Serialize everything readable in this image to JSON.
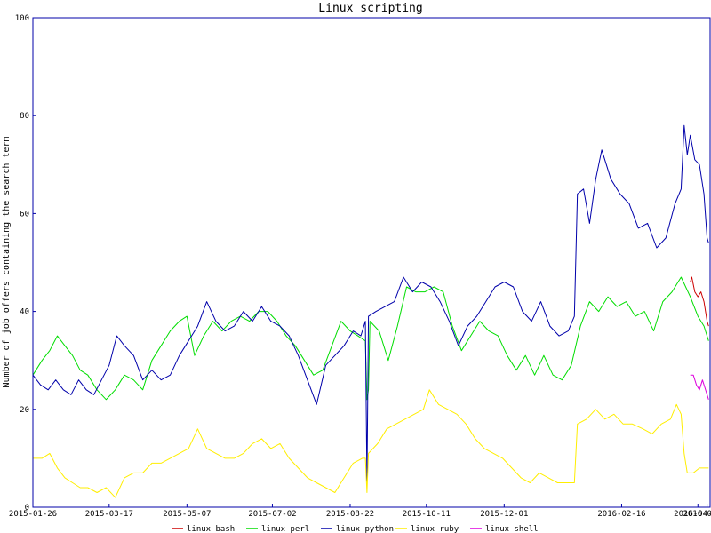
{
  "chart_data": {
    "type": "line",
    "title": "Linux scripting",
    "ylabel": "Number of job offers containing the search term",
    "xlabel": "",
    "ylim": [
      0,
      100
    ],
    "yticks": [
      0,
      20,
      40,
      60,
      80,
      100
    ],
    "xlim": [
      "2015-01-26",
      "2016-04-14"
    ],
    "xticks": [
      "2015-01-26",
      "2015-03-17",
      "2015-05-07",
      "2015-07-02",
      "2015-08-22",
      "2015-10-11",
      "2015-12-01",
      "2016-02-16",
      "2016-04-06",
      "2016-04-12"
    ],
    "grid": false,
    "legend_position": "bottom",
    "series": [
      {
        "name": "linux bash",
        "color": "#cc0000",
        "points": [
          [
            "2016-04-01",
            46
          ],
          [
            "2016-04-02",
            47
          ],
          [
            "2016-04-04",
            44
          ],
          [
            "2016-04-06",
            43
          ],
          [
            "2016-04-08",
            44
          ],
          [
            "2016-04-10",
            42
          ],
          [
            "2016-04-12",
            38
          ],
          [
            "2016-04-13",
            37
          ]
        ]
      },
      {
        "name": "linux perl",
        "color": "#00dd00",
        "points": [
          [
            "2015-01-26",
            27
          ],
          [
            "2015-02-01",
            30
          ],
          [
            "2015-02-06",
            32
          ],
          [
            "2015-02-11",
            35
          ],
          [
            "2015-02-16",
            33
          ],
          [
            "2015-02-21",
            31
          ],
          [
            "2015-02-26",
            28
          ],
          [
            "2015-03-03",
            27
          ],
          [
            "2015-03-09",
            24
          ],
          [
            "2015-03-15",
            22
          ],
          [
            "2015-03-21",
            24
          ],
          [
            "2015-03-27",
            27
          ],
          [
            "2015-04-02",
            26
          ],
          [
            "2015-04-08",
            24
          ],
          [
            "2015-04-14",
            30
          ],
          [
            "2015-04-20",
            33
          ],
          [
            "2015-04-26",
            36
          ],
          [
            "2015-05-02",
            38
          ],
          [
            "2015-05-07",
            39
          ],
          [
            "2015-05-12",
            31
          ],
          [
            "2015-05-18",
            35
          ],
          [
            "2015-05-24",
            38
          ],
          [
            "2015-05-30",
            36
          ],
          [
            "2015-06-05",
            38
          ],
          [
            "2015-06-11",
            39
          ],
          [
            "2015-06-17",
            38
          ],
          [
            "2015-06-23",
            40
          ],
          [
            "2015-06-29",
            40
          ],
          [
            "2015-07-05",
            38
          ],
          [
            "2015-07-11",
            35
          ],
          [
            "2015-07-17",
            33
          ],
          [
            "2015-07-23",
            30
          ],
          [
            "2015-07-29",
            27
          ],
          [
            "2015-08-04",
            28
          ],
          [
            "2015-08-10",
            33
          ],
          [
            "2015-08-16",
            38
          ],
          [
            "2015-08-22",
            36
          ],
          [
            "2015-08-27",
            35
          ],
          [
            "2015-09-01",
            34
          ],
          [
            "2015-09-02",
            22
          ],
          [
            "2015-09-03",
            24
          ],
          [
            "2015-09-04",
            38
          ],
          [
            "2015-09-10",
            36
          ],
          [
            "2015-09-16",
            30
          ],
          [
            "2015-09-22",
            37
          ],
          [
            "2015-09-28",
            45
          ],
          [
            "2015-10-04",
            44
          ],
          [
            "2015-10-10",
            44
          ],
          [
            "2015-10-16",
            45
          ],
          [
            "2015-10-22",
            44
          ],
          [
            "2015-10-28",
            37
          ],
          [
            "2015-11-03",
            32
          ],
          [
            "2015-11-09",
            35
          ],
          [
            "2015-11-15",
            38
          ],
          [
            "2015-11-21",
            36
          ],
          [
            "2015-11-27",
            35
          ],
          [
            "2015-12-03",
            31
          ],
          [
            "2015-12-09",
            28
          ],
          [
            "2015-12-15",
            31
          ],
          [
            "2015-12-21",
            27
          ],
          [
            "2015-12-27",
            31
          ],
          [
            "2016-01-02",
            27
          ],
          [
            "2016-01-08",
            26
          ],
          [
            "2016-01-14",
            29
          ],
          [
            "2016-01-20",
            37
          ],
          [
            "2016-01-26",
            42
          ],
          [
            "2016-02-01",
            40
          ],
          [
            "2016-02-07",
            43
          ],
          [
            "2016-02-13",
            41
          ],
          [
            "2016-02-19",
            42
          ],
          [
            "2016-02-25",
            39
          ],
          [
            "2016-03-02",
            40
          ],
          [
            "2016-03-08",
            36
          ],
          [
            "2016-03-14",
            42
          ],
          [
            "2016-03-20",
            44
          ],
          [
            "2016-03-26",
            47
          ],
          [
            "2016-04-01",
            43
          ],
          [
            "2016-04-06",
            39
          ],
          [
            "2016-04-10",
            37
          ],
          [
            "2016-04-13",
            34
          ]
        ]
      },
      {
        "name": "linux python",
        "color": "#0000aa",
        "points": [
          [
            "2015-01-26",
            27
          ],
          [
            "2015-01-31",
            25
          ],
          [
            "2015-02-05",
            24
          ],
          [
            "2015-02-10",
            26
          ],
          [
            "2015-02-15",
            24
          ],
          [
            "2015-02-20",
            23
          ],
          [
            "2015-02-25",
            26
          ],
          [
            "2015-03-02",
            24
          ],
          [
            "2015-03-07",
            23
          ],
          [
            "2015-03-12",
            26
          ],
          [
            "2015-03-17",
            29
          ],
          [
            "2015-03-22",
            35
          ],
          [
            "2015-03-27",
            33
          ],
          [
            "2015-04-02",
            31
          ],
          [
            "2015-04-08",
            26
          ],
          [
            "2015-04-14",
            28
          ],
          [
            "2015-04-20",
            26
          ],
          [
            "2015-04-26",
            27
          ],
          [
            "2015-05-02",
            31
          ],
          [
            "2015-05-08",
            34
          ],
          [
            "2015-05-14",
            37
          ],
          [
            "2015-05-20",
            42
          ],
          [
            "2015-05-26",
            38
          ],
          [
            "2015-06-01",
            36
          ],
          [
            "2015-06-07",
            37
          ],
          [
            "2015-06-13",
            40
          ],
          [
            "2015-06-19",
            38
          ],
          [
            "2015-06-25",
            41
          ],
          [
            "2015-07-01",
            38
          ],
          [
            "2015-07-07",
            37
          ],
          [
            "2015-07-13",
            35
          ],
          [
            "2015-07-19",
            31
          ],
          [
            "2015-07-25",
            26
          ],
          [
            "2015-07-31",
            21
          ],
          [
            "2015-08-06",
            29
          ],
          [
            "2015-08-12",
            31
          ],
          [
            "2015-08-18",
            33
          ],
          [
            "2015-08-24",
            36
          ],
          [
            "2015-08-29",
            35
          ],
          [
            "2015-09-01",
            38
          ],
          [
            "2015-09-02",
            5
          ],
          [
            "2015-09-03",
            39
          ],
          [
            "2015-09-08",
            40
          ],
          [
            "2015-09-14",
            41
          ],
          [
            "2015-09-20",
            42
          ],
          [
            "2015-09-26",
            47
          ],
          [
            "2015-10-02",
            44
          ],
          [
            "2015-10-08",
            46
          ],
          [
            "2015-10-14",
            45
          ],
          [
            "2015-10-20",
            42
          ],
          [
            "2015-10-26",
            38
          ],
          [
            "2015-11-01",
            33
          ],
          [
            "2015-11-07",
            37
          ],
          [
            "2015-11-13",
            39
          ],
          [
            "2015-11-19",
            42
          ],
          [
            "2015-11-25",
            45
          ],
          [
            "2015-12-01",
            46
          ],
          [
            "2015-12-07",
            45
          ],
          [
            "2015-12-13",
            40
          ],
          [
            "2015-12-19",
            38
          ],
          [
            "2015-12-25",
            42
          ],
          [
            "2015-12-31",
            37
          ],
          [
            "2016-01-06",
            35
          ],
          [
            "2016-01-12",
            36
          ],
          [
            "2016-01-16",
            39
          ],
          [
            "2016-01-18",
            64
          ],
          [
            "2016-01-22",
            65
          ],
          [
            "2016-01-26",
            58
          ],
          [
            "2016-01-30",
            67
          ],
          [
            "2016-02-03",
            73
          ],
          [
            "2016-02-09",
            67
          ],
          [
            "2016-02-15",
            64
          ],
          [
            "2016-02-21",
            62
          ],
          [
            "2016-02-27",
            57
          ],
          [
            "2016-03-04",
            58
          ],
          [
            "2016-03-10",
            53
          ],
          [
            "2016-03-16",
            55
          ],
          [
            "2016-03-22",
            62
          ],
          [
            "2016-03-26",
            65
          ],
          [
            "2016-03-28",
            78
          ],
          [
            "2016-03-30",
            72
          ],
          [
            "2016-04-01",
            76
          ],
          [
            "2016-04-04",
            71
          ],
          [
            "2016-04-07",
            70
          ],
          [
            "2016-04-10",
            64
          ],
          [
            "2016-04-12",
            55
          ],
          [
            "2016-04-13",
            54
          ]
        ]
      },
      {
        "name": "linux ruby",
        "color": "#ffee00",
        "points": [
          [
            "2015-01-26",
            10
          ],
          [
            "2015-02-01",
            10
          ],
          [
            "2015-02-06",
            11
          ],
          [
            "2015-02-11",
            8
          ],
          [
            "2015-02-16",
            6
          ],
          [
            "2015-02-21",
            5
          ],
          [
            "2015-02-26",
            4
          ],
          [
            "2015-03-03",
            4
          ],
          [
            "2015-03-09",
            3
          ],
          [
            "2015-03-15",
            4
          ],
          [
            "2015-03-21",
            2
          ],
          [
            "2015-03-27",
            6
          ],
          [
            "2015-04-02",
            7
          ],
          [
            "2015-04-08",
            7
          ],
          [
            "2015-04-14",
            9
          ],
          [
            "2015-04-20",
            9
          ],
          [
            "2015-04-26",
            10
          ],
          [
            "2015-05-02",
            11
          ],
          [
            "2015-05-08",
            12
          ],
          [
            "2015-05-14",
            16
          ],
          [
            "2015-05-20",
            12
          ],
          [
            "2015-05-26",
            11
          ],
          [
            "2015-06-01",
            10
          ],
          [
            "2015-06-07",
            10
          ],
          [
            "2015-06-13",
            11
          ],
          [
            "2015-06-19",
            13
          ],
          [
            "2015-06-25",
            14
          ],
          [
            "2015-07-01",
            12
          ],
          [
            "2015-07-07",
            13
          ],
          [
            "2015-07-13",
            10
          ],
          [
            "2015-07-19",
            8
          ],
          [
            "2015-07-25",
            6
          ],
          [
            "2015-07-31",
            5
          ],
          [
            "2015-08-06",
            4
          ],
          [
            "2015-08-12",
            3
          ],
          [
            "2015-08-18",
            6
          ],
          [
            "2015-08-24",
            9
          ],
          [
            "2015-08-30",
            10
          ],
          [
            "2015-09-01",
            10
          ],
          [
            "2015-09-02",
            3
          ],
          [
            "2015-09-03",
            11
          ],
          [
            "2015-09-09",
            13
          ],
          [
            "2015-09-15",
            16
          ],
          [
            "2015-09-21",
            17
          ],
          [
            "2015-09-27",
            18
          ],
          [
            "2015-10-03",
            19
          ],
          [
            "2015-10-09",
            20
          ],
          [
            "2015-10-13",
            24
          ],
          [
            "2015-10-19",
            21
          ],
          [
            "2015-10-25",
            20
          ],
          [
            "2015-10-31",
            19
          ],
          [
            "2015-11-06",
            17
          ],
          [
            "2015-11-12",
            14
          ],
          [
            "2015-11-18",
            12
          ],
          [
            "2015-11-24",
            11
          ],
          [
            "2015-11-30",
            10
          ],
          [
            "2015-12-06",
            8
          ],
          [
            "2015-12-12",
            6
          ],
          [
            "2015-12-18",
            5
          ],
          [
            "2015-12-24",
            7
          ],
          [
            "2015-12-30",
            6
          ],
          [
            "2016-01-05",
            5
          ],
          [
            "2016-01-11",
            5
          ],
          [
            "2016-01-16",
            5
          ],
          [
            "2016-01-18",
            17
          ],
          [
            "2016-01-24",
            18
          ],
          [
            "2016-01-30",
            20
          ],
          [
            "2016-02-05",
            18
          ],
          [
            "2016-02-11",
            19
          ],
          [
            "2016-02-17",
            17
          ],
          [
            "2016-02-23",
            17
          ],
          [
            "2016-03-01",
            16
          ],
          [
            "2016-03-07",
            15
          ],
          [
            "2016-03-13",
            17
          ],
          [
            "2016-03-19",
            18
          ],
          [
            "2016-03-23",
            21
          ],
          [
            "2016-03-26",
            19
          ],
          [
            "2016-03-28",
            11
          ],
          [
            "2016-03-30",
            7
          ],
          [
            "2016-04-03",
            7
          ],
          [
            "2016-04-07",
            8
          ],
          [
            "2016-04-11",
            8
          ],
          [
            "2016-04-13",
            8
          ]
        ]
      },
      {
        "name": "linux shell",
        "color": "#dd00dd",
        "points": [
          [
            "2016-04-01",
            27
          ],
          [
            "2016-04-03",
            27
          ],
          [
            "2016-04-05",
            25
          ],
          [
            "2016-04-07",
            24
          ],
          [
            "2016-04-09",
            26
          ],
          [
            "2016-04-11",
            24
          ],
          [
            "2016-04-13",
            22
          ]
        ]
      }
    ]
  }
}
